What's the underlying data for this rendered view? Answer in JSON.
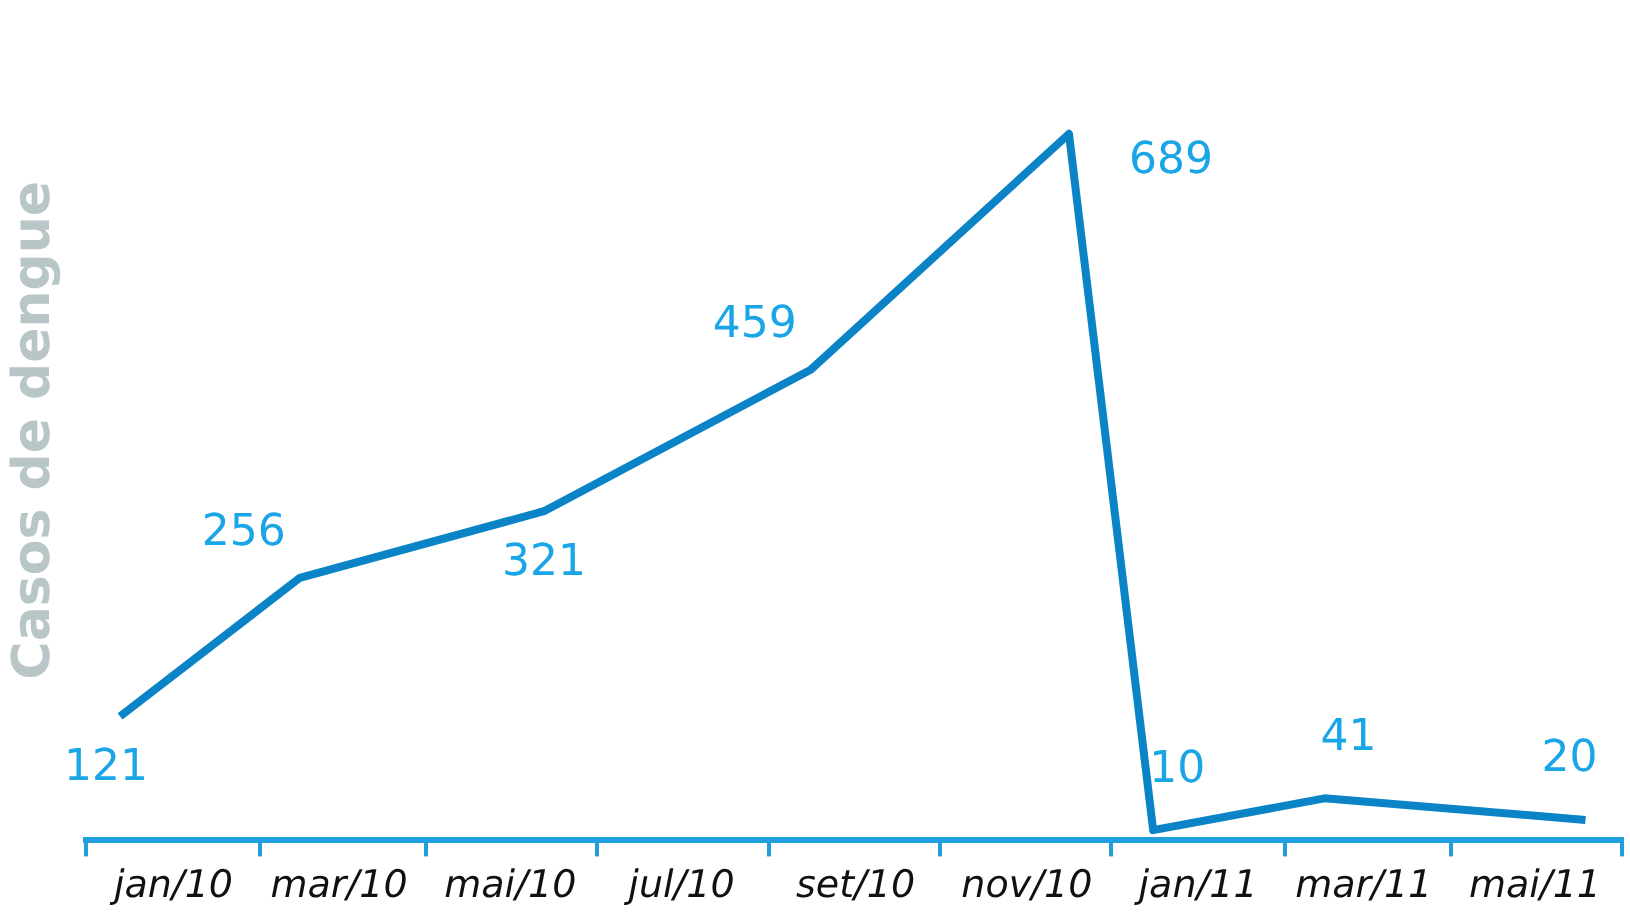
{
  "chart_data": {
    "type": "line",
    "ylabel": "Casos de dengue",
    "x": [
      "2009-12-13",
      "2010-02-15",
      "2010-05-13",
      "2010-08-16",
      "2010-11-16",
      "2010-12-16",
      "2011-02-15",
      "2011-05-19"
    ],
    "values": [
      121,
      256,
      321,
      459,
      689,
      10,
      41,
      20
    ],
    "color": "#0a84c6",
    "data_labels": true,
    "marker": "none",
    "line_style": "solid",
    "grid": false,
    "legend": false,
    "xlim": [
      "2009-12",
      "2011-06"
    ],
    "xticks": [
      {
        "value": "2009-12",
        "label": null
      },
      {
        "value": "2010-01",
        "label": "jan/10"
      },
      {
        "value": "2010-02",
        "label": null
      },
      {
        "value": "2010-03",
        "label": "mar/10"
      },
      {
        "value": "2010-04",
        "label": null
      },
      {
        "value": "2010-05",
        "label": "mai/10"
      },
      {
        "value": "2010-06",
        "label": null
      },
      {
        "value": "2010-07",
        "label": "jul/10"
      },
      {
        "value": "2010-08",
        "label": null
      },
      {
        "value": "2010-09",
        "label": "set/10"
      },
      {
        "value": "2010-10",
        "label": null
      },
      {
        "value": "2010-11",
        "label": "nov/10"
      },
      {
        "value": "2010-12",
        "label": null
      },
      {
        "value": "2011-01",
        "label": "jan/11"
      },
      {
        "value": "2011-02",
        "label": null
      },
      {
        "value": "2011-03",
        "label": "mar/11"
      },
      {
        "value": "2011-04",
        "label": null
      },
      {
        "value": "2011-05",
        "label": "mai/11"
      },
      {
        "value": "2011-06",
        "label": null
      }
    ],
    "tick_labels": "x"
  }
}
